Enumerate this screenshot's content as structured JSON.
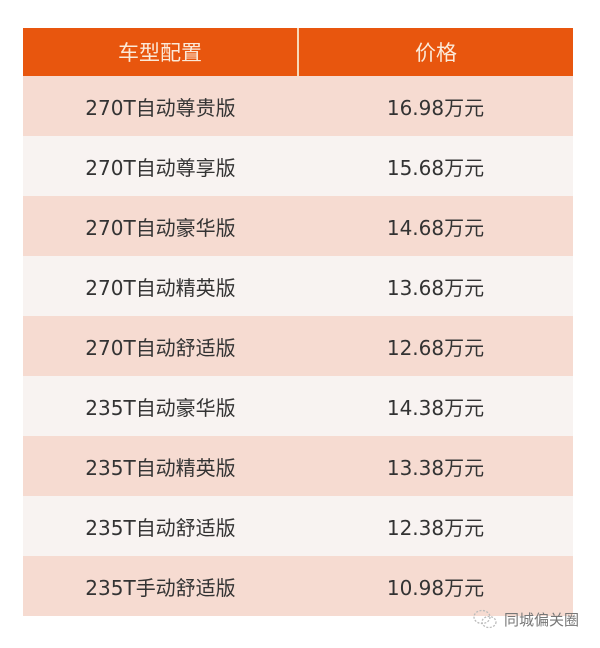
{
  "table": {
    "headers": [
      "车型配置",
      "价格"
    ],
    "rows": [
      [
        "270T自动尊贵版",
        "16.98万元"
      ],
      [
        "270T自动尊享版",
        "15.68万元"
      ],
      [
        "270T自动豪华版",
        "14.68万元"
      ],
      [
        "270T自动精英版",
        "13.68万元"
      ],
      [
        "270T自动舒适版",
        "12.68万元"
      ],
      [
        "235T自动豪华版",
        "14.38万元"
      ],
      [
        "235T自动精英版",
        "13.38万元"
      ],
      [
        "235T自动舒适版",
        "12.38万元"
      ],
      [
        "235T手动舒适版",
        "10.98万元"
      ]
    ],
    "colors": {
      "header": "#e8560e",
      "row_odd": "#f6dbd1",
      "row_even": "#f8f3f1"
    }
  },
  "watermark": {
    "icon": "wechat-icon",
    "text": "同城偏关圈"
  }
}
